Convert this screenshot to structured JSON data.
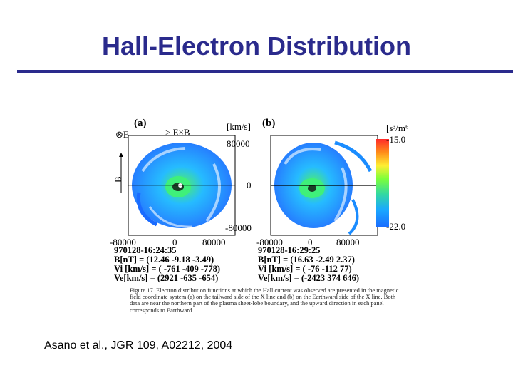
{
  "slide": {
    "title": "Hall-Electron Distribution",
    "citation": "Asano et al., JGR 109, A02212, 2004"
  },
  "figure": {
    "panel_a_label": "(a)",
    "panel_b_label": "(b)",
    "axis_left_top": "⊗E",
    "axis_left_bottom": "B",
    "axis_top_a": "> E×B",
    "unit_velocity": "[km/s]",
    "y_tick_top": "80000",
    "y_tick_mid": "0",
    "y_tick_bottom": "-80000",
    "x_ticks_a": [
      "-80000",
      "0",
      "80000"
    ],
    "x_ticks_b": [
      "-80000",
      "0",
      "80000"
    ],
    "colorbar_unit": "[s³/m⁶",
    "colorbar_max": "-15.0",
    "colorbar_min": "-22.0",
    "colorbar_colors": [
      "#ff2a2a",
      "#ff8c1a",
      "#ffee33",
      "#7cff3a",
      "#33d9a0",
      "#1aa8ff",
      "#1a6bff"
    ],
    "panel_a_info": {
      "time": "970128-16:24:35",
      "B": "B[nT]    = (12.46  -9.18  -3.49)",
      "Vi": "Vi [km/s] = ( -761   -409   -778)",
      "Ve": "Ve[km/s] = (2921   -635   -654)"
    },
    "panel_b_info": {
      "time": "970128-16:29:25",
      "B": "B[nT]    = (16.63 -2.49 2.37)",
      "Vi": "Vi [km/s] = (  -76   -112    77)",
      "Ve": "Ve[km/s] = (-2423   374  646)"
    },
    "caption": "Figure 17.   Electron distribution functions at which the Hall current was observed are presented in the magnetic field coordinate system (a) on the tailward side of the X line and (b) on the Earthward side of the X line. Both data are near the northern part of the plasma sheet-lobe boundary, and the upward direction in each panel corresponds to Earthward."
  }
}
